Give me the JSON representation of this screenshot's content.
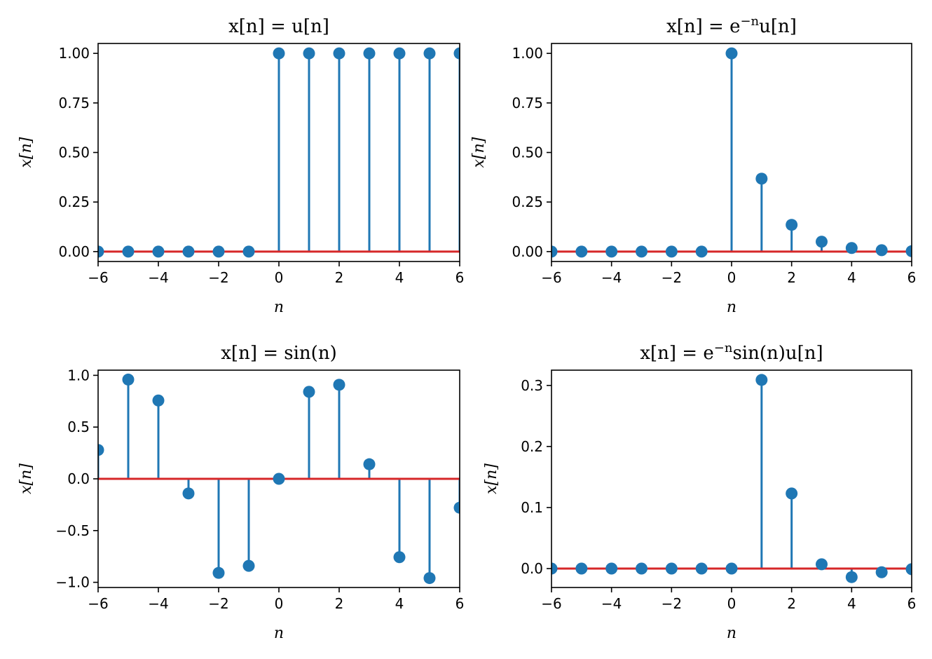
{
  "chart_data": [
    {
      "type": "stem",
      "title": "x[n] = u[n]",
      "xlabel": "n",
      "ylabel": "x[n]",
      "xlim": [
        -6,
        6
      ],
      "ylim": [
        -0.05,
        1.05
      ],
      "xticks": [
        -6,
        -4,
        -2,
        0,
        2,
        4,
        6
      ],
      "xtick_labels": [
        "−6",
        "−4",
        "−2",
        "0",
        "2",
        "4",
        "6"
      ],
      "yticks": [
        0,
        0.25,
        0.5,
        0.75,
        1.0
      ],
      "ytick_labels": [
        "0.00",
        "0.25",
        "0.50",
        "0.75",
        "1.00"
      ],
      "x": [
        -6,
        -5,
        -4,
        -3,
        -2,
        -1,
        0,
        1,
        2,
        3,
        4,
        5,
        6
      ],
      "values": [
        0,
        0,
        0,
        0,
        0,
        0,
        1,
        1,
        1,
        1,
        1,
        1,
        1
      ]
    },
    {
      "type": "stem",
      "title": "x[n] = e^{−n}u[n]",
      "xlabel": "n",
      "ylabel": "x[n]",
      "xlim": [
        -6,
        6
      ],
      "ylim": [
        -0.05,
        1.05
      ],
      "xticks": [
        -6,
        -4,
        -2,
        0,
        2,
        4,
        6
      ],
      "xtick_labels": [
        "−6",
        "−4",
        "−2",
        "0",
        "2",
        "4",
        "6"
      ],
      "yticks": [
        0,
        0.25,
        0.5,
        0.75,
        1.0
      ],
      "ytick_labels": [
        "0.00",
        "0.25",
        "0.50",
        "0.75",
        "1.00"
      ],
      "x": [
        -6,
        -5,
        -4,
        -3,
        -2,
        -1,
        0,
        1,
        2,
        3,
        4,
        5,
        6
      ],
      "values": [
        0,
        0,
        0,
        0,
        0,
        0,
        1,
        0.368,
        0.135,
        0.05,
        0.018,
        0.007,
        0.002
      ]
    },
    {
      "type": "stem",
      "title": "x[n] = sin(n)",
      "xlabel": "n",
      "ylabel": "x[n]",
      "xlim": [
        -6,
        6
      ],
      "ylim": [
        -1.05,
        1.05
      ],
      "xticks": [
        -6,
        -4,
        -2,
        0,
        2,
        4,
        6
      ],
      "xtick_labels": [
        "−6",
        "−4",
        "−2",
        "0",
        "2",
        "4",
        "6"
      ],
      "yticks": [
        -1.0,
        -0.5,
        0,
        0.5,
        1.0
      ],
      "ytick_labels": [
        "−1.0",
        "−0.5",
        "0.0",
        "0.5",
        "1.0"
      ],
      "x": [
        -6,
        -5,
        -4,
        -3,
        -2,
        -1,
        0,
        1,
        2,
        3,
        4,
        5,
        6
      ],
      "values": [
        0.279,
        0.959,
        0.757,
        -0.141,
        -0.909,
        -0.841,
        0,
        0.841,
        0.909,
        0.141,
        -0.757,
        -0.959,
        -0.279
      ]
    },
    {
      "type": "stem",
      "title": "x[n] = e^{−n}sin(n)u[n]",
      "xlabel": "n",
      "ylabel": "x[n]",
      "xlim": [
        -6,
        6
      ],
      "ylim": [
        -0.031,
        0.325
      ],
      "xticks": [
        -6,
        -4,
        -2,
        0,
        2,
        4,
        6
      ],
      "xtick_labels": [
        "−6",
        "−4",
        "−2",
        "0",
        "2",
        "4",
        "6"
      ],
      "yticks": [
        0,
        0.1,
        0.2,
        0.3
      ],
      "ytick_labels": [
        "0.0",
        "0.1",
        "0.2",
        "0.3"
      ],
      "x": [
        -6,
        -5,
        -4,
        -3,
        -2,
        -1,
        0,
        1,
        2,
        3,
        4,
        5,
        6
      ],
      "values": [
        0,
        0,
        0,
        0,
        0,
        0,
        0,
        0.309,
        0.123,
        0.007,
        -0.014,
        -0.006,
        -0.001
      ]
    }
  ],
  "colors": {
    "stem": "#1f77b4",
    "baseline": "#d62728",
    "axes": "#000000"
  }
}
